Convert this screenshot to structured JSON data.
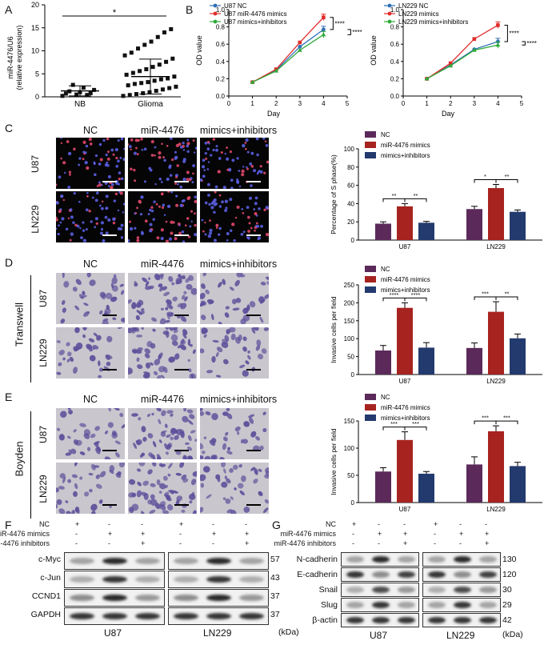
{
  "panels": {
    "A": "A",
    "B": "B",
    "C": "C",
    "D": "D",
    "E": "E",
    "F": "F",
    "G": "G"
  },
  "panel_a": {
    "ylabel_line1": "miR-4476/U6",
    "ylabel_line2": "(relative expression)",
    "categories": [
      "NB",
      "Glioma"
    ],
    "significance": "*",
    "yticks": [
      "0",
      "5",
      "10",
      "15",
      "20"
    ]
  },
  "panel_b": {
    "ylabel": "OD value",
    "xlabel": "Day",
    "xticks": [
      "0",
      "1",
      "2",
      "3",
      "4",
      "5"
    ],
    "yticks": [
      "0.0",
      "0.2",
      "0.4",
      "0.6",
      "0.8",
      "1.0"
    ],
    "significance": "****"
  },
  "micro_columns": [
    "NC",
    "miR-4476",
    "mimics+inhibitors"
  ],
  "micro_rows": [
    "U87",
    "LN229"
  ],
  "side_labels": {
    "D": "Transwell",
    "E": "Boyden"
  },
  "bar_legend_c": [
    "NC",
    "miR-4476 mimics",
    "mimics+inhibitors"
  ],
  "bar_groups": [
    "U87",
    "LN229"
  ],
  "bar_c": {
    "ylabel": "Percentage of S phase(%)",
    "yticks": [
      "0",
      "20",
      "40",
      "60",
      "80",
      "100"
    ]
  },
  "bar_d": {
    "ylabel": "Invasive cells per field",
    "yticks": [
      "0",
      "50",
      "100",
      "150",
      "200",
      "250"
    ]
  },
  "bar_e": {
    "ylabel": "Invasive cells per field",
    "yticks": [
      "0",
      "50",
      "100",
      "150"
    ]
  },
  "blot_f": {
    "treatments": [
      "NC",
      "miR-4476 mimics",
      "miR-4476 inhibitors"
    ],
    "signs": [
      [
        "+",
        "-",
        "-",
        "+",
        "-",
        "-"
      ],
      [
        "-",
        "+",
        "+",
        "-",
        "+",
        "+"
      ],
      [
        "-",
        "-",
        "+",
        "-",
        "-",
        "+"
      ]
    ],
    "rows": [
      "c-Myc",
      "c-Jun",
      "CCND1",
      "GAPDH"
    ],
    "kda": [
      "57",
      "43",
      "37",
      "37"
    ],
    "cells": [
      "U87",
      "LN229"
    ],
    "unit": "(kDa)"
  },
  "blot_g": {
    "treatments": [
      "NC",
      "miR-4476 mimics",
      "miR-4476 inhibitors"
    ],
    "signs": [
      [
        "+",
        "-",
        "-",
        "+",
        "-",
        "-"
      ],
      [
        "-",
        "+",
        "+",
        "-",
        "+",
        "+"
      ],
      [
        "-",
        "-",
        "+",
        "-",
        "-",
        "+"
      ]
    ],
    "rows": [
      "N-cadherin",
      "E-cadherin",
      "Snail",
      "Slug",
      "β-actin"
    ],
    "kda": [
      "130",
      "120",
      "30",
      "29",
      "42"
    ],
    "cells": [
      "U87",
      "LN229"
    ],
    "unit": "(kDa)"
  },
  "chart_data": [
    {
      "type": "scatter",
      "ylabel": "miR-4476/U6 (relative expression)",
      "categories": [
        "NB",
        "Glioma"
      ],
      "series": [
        {
          "name": "NB",
          "values": [
            0.2,
            0.4,
            0.5,
            0.7,
            0.8,
            1.0,
            1.2,
            1.5,
            2.0,
            2.6
          ],
          "mean": 1.3,
          "sd": 1.1
        },
        {
          "name": "Glioma",
          "values": [
            0.2,
            0.4,
            0.6,
            0.8,
            1.0,
            1.3,
            1.6,
            1.9,
            2.2,
            2.5,
            2.8,
            3.0,
            3.2,
            3.5,
            3.8,
            4.0,
            4.4,
            4.8,
            5.2,
            5.6,
            6.0,
            6.5,
            7.0,
            7.6,
            8.3,
            9.0,
            9.6,
            10.5,
            11.3,
            12.0,
            13.0,
            14.0,
            14.7
          ],
          "mean": 4.4,
          "sd": 3.8
        }
      ],
      "ylim": [
        0,
        20
      ]
    },
    {
      "type": "line",
      "xlabel": "Day",
      "ylabel": "OD value",
      "x": [
        1,
        2,
        3,
        4
      ],
      "series": [
        {
          "name": "U87 NC",
          "values": [
            0.16,
            0.3,
            0.57,
            0.77
          ],
          "color": "#2f6fb5"
        },
        {
          "name": "U87 miR-4476 mimics",
          "values": [
            0.16,
            0.31,
            0.62,
            0.91
          ],
          "color": "#e02b2b"
        },
        {
          "name": "U87 mimics+inhibitors",
          "values": [
            0.16,
            0.29,
            0.53,
            0.71
          ],
          "color": "#2faa3a"
        }
      ],
      "xlim": [
        0,
        5
      ],
      "ylim": [
        0,
        1.0
      ]
    },
    {
      "type": "line",
      "xlabel": "Day",
      "ylabel": "OD value",
      "x": [
        1,
        2,
        3,
        4
      ],
      "series": [
        {
          "name": "LN229 NC",
          "values": [
            0.2,
            0.36,
            0.54,
            0.63
          ],
          "color": "#2f6fb5"
        },
        {
          "name": "LN229 mimics",
          "values": [
            0.2,
            0.38,
            0.66,
            0.82
          ],
          "color": "#e02b2b"
        },
        {
          "name": "LN229 mimics+inhibitors",
          "values": [
            0.2,
            0.35,
            0.53,
            0.59
          ],
          "color": "#2faa3a"
        }
      ],
      "xlim": [
        0,
        5
      ],
      "ylim": [
        0,
        1.0
      ]
    },
    {
      "type": "bar",
      "ylabel": "Percentage of S phase(%)",
      "categories": [
        "U87",
        "LN229"
      ],
      "series": [
        {
          "name": "NC",
          "values": [
            18,
            34
          ],
          "err": [
            2,
            3
          ],
          "color": "#5b2a5a"
        },
        {
          "name": "miR-4476 mimics",
          "values": [
            37,
            57
          ],
          "err": [
            3,
            4
          ],
          "color": "#a7231f"
        },
        {
          "name": "mimics+inhibitors",
          "values": [
            19,
            31
          ],
          "err": [
            1.5,
            2
          ],
          "color": "#233a6e"
        }
      ],
      "significance": [
        [
          "**",
          "**"
        ],
        [
          "*",
          "**"
        ]
      ],
      "ylim": [
        0,
        100
      ]
    },
    {
      "type": "bar",
      "ylabel": "Invasive cells per field",
      "categories": [
        "U87",
        "LN229"
      ],
      "series": [
        {
          "name": "NC",
          "values": [
            67,
            74
          ],
          "err": [
            14,
            14
          ],
          "color": "#5b2a5a"
        },
        {
          "name": "miR-4476 mimics",
          "values": [
            186,
            175
          ],
          "err": [
            14,
            28
          ],
          "color": "#a7231f"
        },
        {
          "name": "mimics+inhibitors",
          "values": [
            75,
            101
          ],
          "err": [
            14,
            12
          ],
          "color": "#233a6e"
        }
      ],
      "significance": [
        [
          "****",
          "****"
        ],
        [
          "***",
          "**"
        ]
      ],
      "ylim": [
        0,
        250
      ]
    },
    {
      "type": "bar",
      "ylabel": "Invasive cells per field",
      "categories": [
        "U87",
        "LN229"
      ],
      "series": [
        {
          "name": "NC",
          "values": [
            57,
            70
          ],
          "err": [
            7,
            14
          ],
          "color": "#5b2a5a"
        },
        {
          "name": "miR-4476 mimics",
          "values": [
            115,
            131
          ],
          "err": [
            15,
            10
          ],
          "color": "#a7231f"
        },
        {
          "name": "mimics+inhibitors",
          "values": [
            53,
            67
          ],
          "err": [
            4,
            7
          ],
          "color": "#233a6e"
        }
      ],
      "significance": [
        [
          "***",
          "***"
        ],
        [
          "***",
          "***"
        ]
      ],
      "ylim": [
        0,
        150
      ]
    }
  ]
}
